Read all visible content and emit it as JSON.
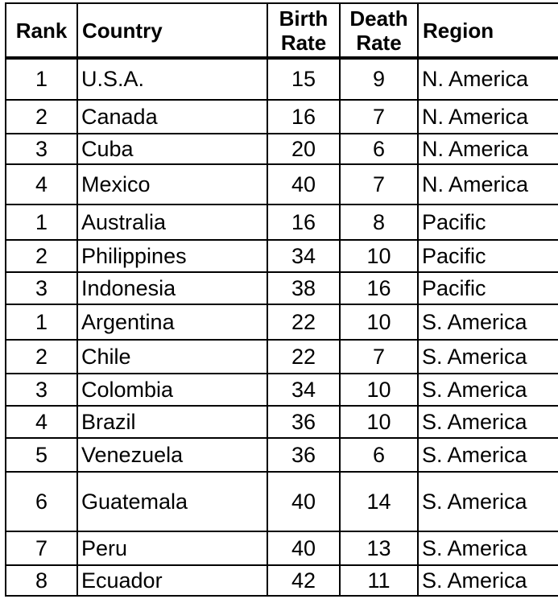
{
  "table": {
    "headers": {
      "rank": "Rank",
      "country": "Country",
      "birth_rate_line1": "Birth",
      "birth_rate_line2": "Rate",
      "death_rate_line1": "Death",
      "death_rate_line2": "Rate",
      "region": "Region"
    },
    "rows": [
      {
        "rank": "1",
        "country": "U.S.A.",
        "birth": "15",
        "death": "9",
        "region": "N. America"
      },
      {
        "rank": "2",
        "country": "Canada",
        "birth": "16",
        "death": "7",
        "region": "N. America"
      },
      {
        "rank": "3",
        "country": "Cuba",
        "birth": "20",
        "death": "6",
        "region": "N. America"
      },
      {
        "rank": "4",
        "country": "Mexico",
        "birth": "40",
        "death": "7",
        "region": "N. America"
      },
      {
        "rank": "1",
        "country": "Australia",
        "birth": "16",
        "death": "8",
        "region": "Pacific"
      },
      {
        "rank": "2",
        "country": "Philippines",
        "birth": "34",
        "death": "10",
        "region": "Pacific"
      },
      {
        "rank": "3",
        "country": "Indonesia",
        "birth": "38",
        "death": "16",
        "region": "Pacific"
      },
      {
        "rank": "1",
        "country": "Argentina",
        "birth": "22",
        "death": "10",
        "region": "S. America"
      },
      {
        "rank": "2",
        "country": "Chile",
        "birth": "22",
        "death": "7",
        "region": "S. America"
      },
      {
        "rank": "3",
        "country": "Colombia",
        "birth": "34",
        "death": "10",
        "region": "S. America"
      },
      {
        "rank": "4",
        "country": "Brazil",
        "birth": "36",
        "death": "10",
        "region": "S. America"
      },
      {
        "rank": "5",
        "country": "Venezuela",
        "birth": "36",
        "death": "6",
        "region": "S. America"
      },
      {
        "rank": "6",
        "country": "Guatemala",
        "birth": "40",
        "death": "14",
        "region": "S. America"
      },
      {
        "rank": "7",
        "country": "Peru",
        "birth": "40",
        "death": "13",
        "region": "S. America"
      },
      {
        "rank": "8",
        "country": "Ecuador",
        "birth": "42",
        "death": "11",
        "region": "S. America"
      }
    ]
  }
}
